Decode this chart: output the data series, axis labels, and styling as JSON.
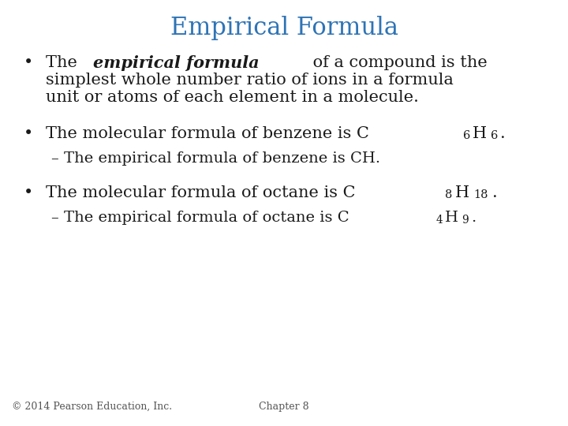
{
  "title": "Empirical Formula",
  "title_color": "#2E74B5",
  "title_fontsize": 22,
  "background_color": "#FFFFFF",
  "footer_left": "© 2014 Pearson Education, Inc.",
  "footer_right": "Chapter 8",
  "footer_fontsize": 9,
  "footer_color": "#555555",
  "text_color": "#1a1a1a",
  "bullet_fontsize": 15,
  "sub_fontsize": 14
}
